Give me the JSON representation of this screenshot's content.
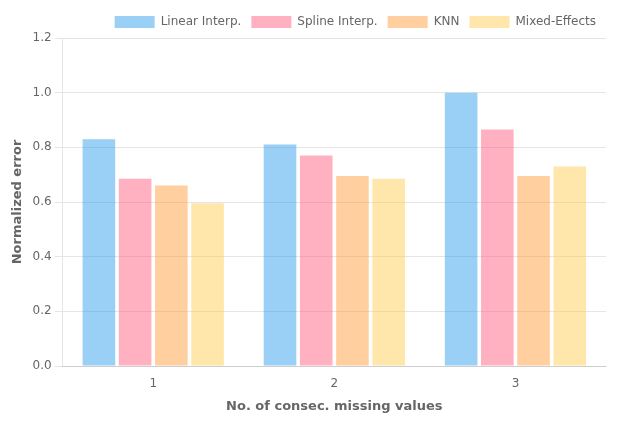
{
  "chart_data": {
    "type": "bar",
    "categories": [
      "1",
      "2",
      "3"
    ],
    "series": [
      {
        "name": "Linear Interp.",
        "values": [
          0.83,
          0.81,
          1.0
        ]
      },
      {
        "name": "Spline Interp.",
        "values": [
          0.685,
          0.77,
          0.865
        ]
      },
      {
        "name": "KNN",
        "values": [
          0.66,
          0.695,
          0.695
        ]
      },
      {
        "name": "Mixed-Effects",
        "values": [
          0.595,
          0.685,
          0.73
        ]
      }
    ],
    "xlabel": "No. of consec. missing values",
    "ylabel": "Normalized error",
    "ylim": [
      0,
      1.2
    ],
    "yticks": [
      {
        "value": 0,
        "label": "0.0"
      },
      0.2,
      0.4,
      0.6,
      0.8,
      {
        "value": 1.0,
        "label": "1.0"
      },
      1.2
    ],
    "grid": true,
    "legend": "upper right"
  }
}
